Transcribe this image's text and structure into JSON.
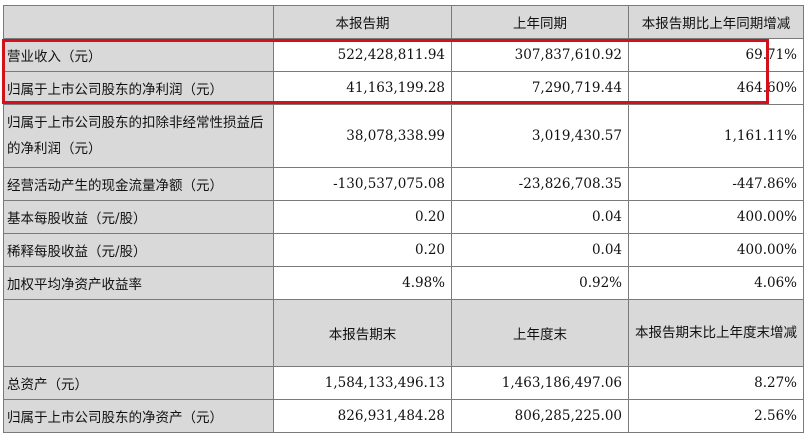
{
  "header1": [
    "本报告期",
    "上年同期",
    "本报告期比上年同期增减"
  ],
  "rows1": [
    {
      "label": "营业收入（元）",
      "cur": "522,428,811.94",
      "prev": "307,837,610.92",
      "chg": "69.71%"
    },
    {
      "label": "归属于上市公司股东的净利润（元）",
      "cur": "41,163,199.28",
      "prev": "7,290,719.44",
      "chg": "464.60%"
    },
    {
      "label": "归属于上市公司股东的扣除非经常性损益后的净利润（元）",
      "cur": "38,078,338.99",
      "prev": "3,019,430.57",
      "chg": "1,161.11%"
    },
    {
      "label": "经营活动产生的现金流量净额（元）",
      "cur": "-130,537,075.08",
      "prev": "-23,826,708.35",
      "chg": "-447.86%"
    },
    {
      "label": "基本每股收益（元/股）",
      "cur": "0.20",
      "prev": "0.04",
      "chg": "400.00%"
    },
    {
      "label": "稀释每股收益（元/股）",
      "cur": "0.20",
      "prev": "0.04",
      "chg": "400.00%"
    },
    {
      "label": "加权平均净资产收益率",
      "cur": "4.98%",
      "prev": "0.92%",
      "chg": "4.06%"
    }
  ],
  "header2": [
    "本报告期末",
    "上年度末",
    "本报告期末比上年度末增减"
  ],
  "rows2": [
    {
      "label": "总资产（元）",
      "cur": "1,584,133,496.13",
      "prev": "1,463,186,497.06",
      "chg": "8.27%"
    },
    {
      "label": "归属于上市公司股东的净资产（元）",
      "cur": "826,931,484.28",
      "prev": "806,285,225.00",
      "chg": "2.56%"
    }
  ]
}
